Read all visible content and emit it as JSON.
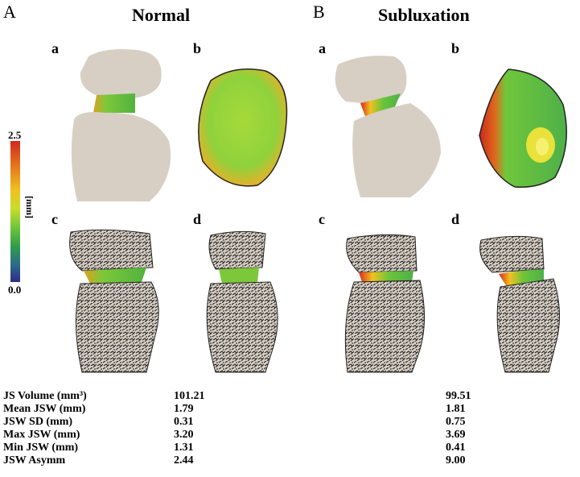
{
  "panels": [
    {
      "letter": "A",
      "title": "Normal",
      "sub": [
        "a",
        "b",
        "c",
        "d"
      ]
    },
    {
      "letter": "B",
      "title": "Subluxation",
      "sub": [
        "a",
        "b",
        "c",
        "d"
      ]
    }
  ],
  "scale": {
    "max": "2.5",
    "min": "0.0",
    "unit": "[mm]"
  },
  "stats": {
    "labels": [
      "JS Volume (mm³)",
      "Mean JSW (mm)",
      "JSW SD (mm)",
      "Max JSW (mm)",
      "Min JSW (mm)",
      "JSW Asymm"
    ],
    "normal": [
      "101.21",
      "1.79",
      "0.31",
      "3.20",
      "1.31",
      "2.44"
    ],
    "subluxation": [
      "99.51",
      "1.81",
      "0.75",
      "3.69",
      "0.41",
      "9.00"
    ]
  },
  "colors": {
    "bone": "#d8cfc4",
    "trabecular": "#2a2a2a",
    "high": "#d8281e",
    "mid": "#c8dd2a",
    "low": "#2f9c4a"
  }
}
